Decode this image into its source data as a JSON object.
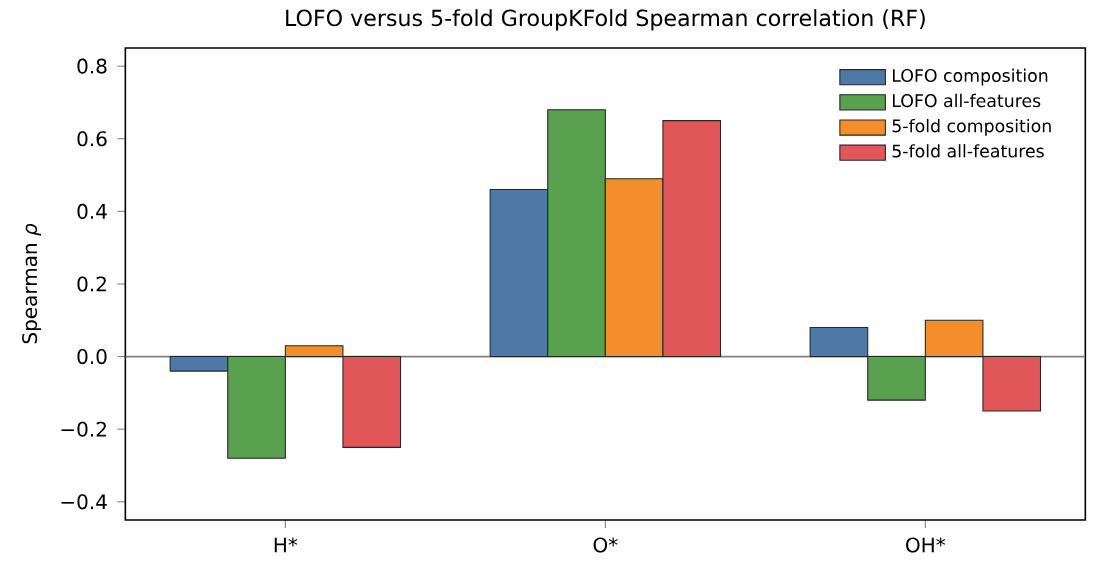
{
  "chart_data": {
    "type": "bar",
    "title": "LOFO versus 5-fold GroupKFold Spearman correlation (RF)",
    "ylabel": "Spearman *ρ*",
    "categories": [
      "H*",
      "O*",
      "OH*"
    ],
    "series": [
      {
        "name": "LOFO composition",
        "color": "#4e79a7",
        "values": [
          -0.04,
          0.46,
          0.08
        ]
      },
      {
        "name": "LOFO all-features",
        "color": "#59a14f",
        "values": [
          -0.28,
          0.68,
          -0.12
        ]
      },
      {
        "name": "5-fold composition",
        "color": "#f28e2b",
        "values": [
          0.03,
          0.49,
          0.1
        ]
      },
      {
        "name": "5-fold all-features",
        "color": "#e15759",
        "values": [
          -0.25,
          0.65,
          -0.15
        ]
      }
    ],
    "ylim": [
      -0.45,
      0.85
    ],
    "yticks": [
      {
        "value": -0.4,
        "label": "−0.4"
      },
      {
        "value": -0.2,
        "label": "−0.2"
      },
      {
        "value": 0,
        "label": "0.0"
      },
      {
        "value": 0.2,
        "label": "0.2"
      },
      {
        "value": 0.4,
        "label": "0.4"
      },
      {
        "value": 0.6,
        "label": "0.6"
      },
      {
        "value": 0.8,
        "label": "0.8"
      }
    ],
    "ref_lines": [
      {
        "axis": "y",
        "value": 0,
        "color": "#808080"
      }
    ],
    "legend": "top right"
  }
}
